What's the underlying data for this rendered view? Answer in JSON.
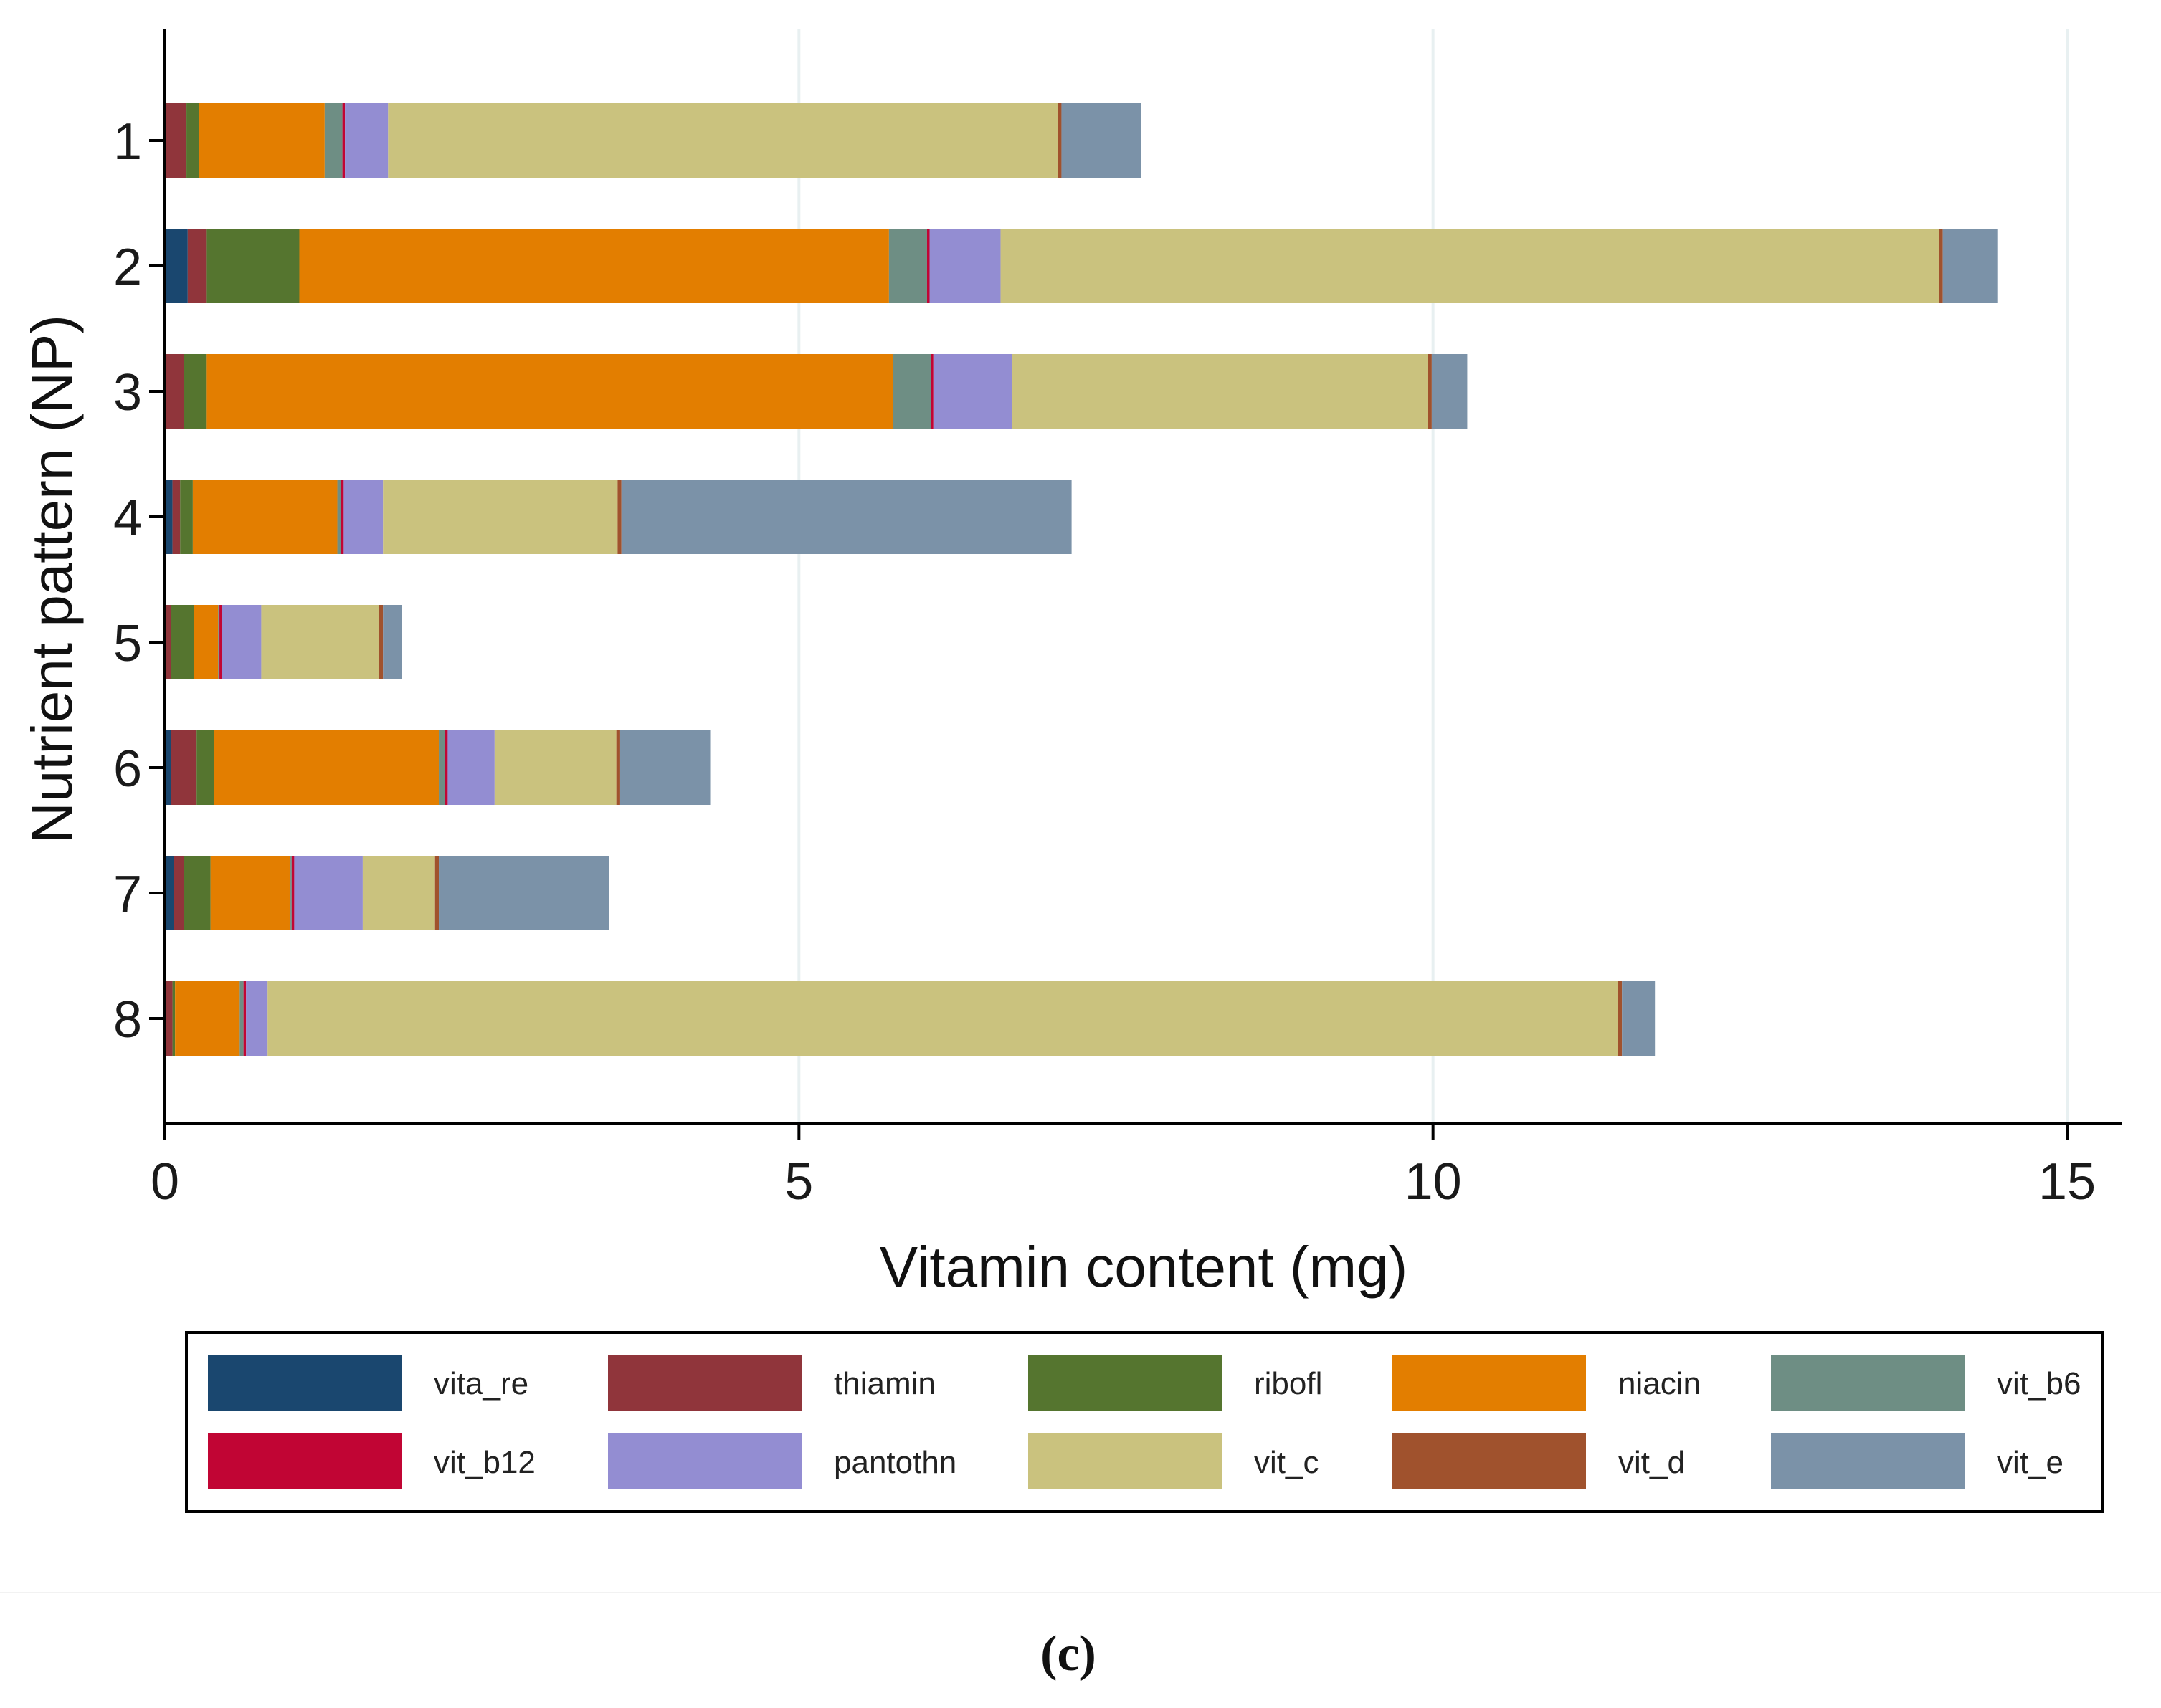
{
  "chart_data": {
    "type": "bar",
    "orientation": "horizontal",
    "stacked": true,
    "xlabel": "Vitamin content (mg)",
    "ylabel": "Nutrient pattern (NP)",
    "xlim": [
      0,
      15.4
    ],
    "xticks": [
      0,
      5,
      10,
      15
    ],
    "xtick_labels": [
      "0",
      "5",
      "10",
      "15"
    ],
    "categories": [
      "1",
      "2",
      "3",
      "4",
      "5",
      "6",
      "7",
      "8"
    ],
    "grid": "vertical",
    "legend_position": "bottom",
    "caption": "(c)",
    "series": [
      {
        "name": "vita_re",
        "color": "#1a476f",
        "values": [
          0.01,
          0.18,
          0.01,
          0.06,
          0.01,
          0.05,
          0.07,
          0.01
        ]
      },
      {
        "name": "thiamin",
        "color": "#90353b",
        "values": [
          0.16,
          0.15,
          0.14,
          0.06,
          0.04,
          0.2,
          0.08,
          0.05
        ]
      },
      {
        "name": "ribofl",
        "color": "#55752f",
        "values": [
          0.1,
          0.73,
          0.18,
          0.1,
          0.18,
          0.14,
          0.21,
          0.02
        ]
      },
      {
        "name": "niacin",
        "color": "#e37e00",
        "values": [
          0.99,
          4.65,
          5.41,
          1.14,
          0.19,
          1.77,
          0.63,
          0.51
        ]
      },
      {
        "name": "vit_b6",
        "color": "#6e8e84",
        "values": [
          0.14,
          0.3,
          0.3,
          0.03,
          0.01,
          0.05,
          0.01,
          0.03
        ]
      },
      {
        "name": "vit_b12",
        "color": "#c10534",
        "values": [
          0.02,
          0.02,
          0.02,
          0.02,
          0.02,
          0.02,
          0.02,
          0.02
        ]
      },
      {
        "name": "pantothn",
        "color": "#938dd2",
        "values": [
          0.34,
          0.56,
          0.62,
          0.31,
          0.31,
          0.37,
          0.54,
          0.17
        ]
      },
      {
        "name": "vit_c",
        "color": "#cac27e",
        "values": [
          5.28,
          7.4,
          3.28,
          1.85,
          0.93,
          0.96,
          0.57,
          10.65
        ]
      },
      {
        "name": "vit_d",
        "color": "#a0522d",
        "values": [
          0.03,
          0.03,
          0.03,
          0.03,
          0.03,
          0.03,
          0.03,
          0.03
        ]
      },
      {
        "name": "vit_e",
        "color": "#7b92a8",
        "values": [
          0.63,
          0.43,
          0.28,
          3.55,
          0.15,
          0.71,
          1.34,
          0.26
        ]
      }
    ]
  }
}
